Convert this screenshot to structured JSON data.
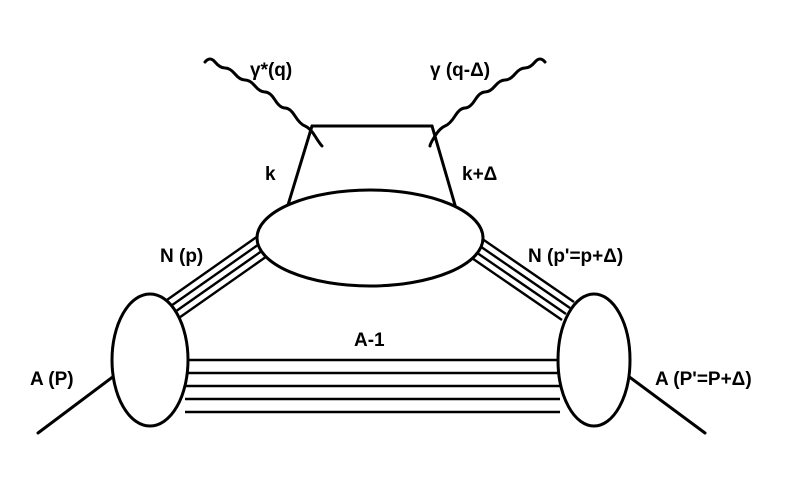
{
  "labels": {
    "photon_in": "γ*(q)",
    "photon_out": "γ (q-Δ)",
    "quark_left": "k",
    "quark_right": "k+Δ",
    "nucleon_in": "N (p)",
    "nucleon_out": "N (p'=p+Δ)",
    "spectator": "A-1",
    "nucleus_in": "A (P)",
    "nucleus_out": "A (P'=P+Δ)"
  }
}
